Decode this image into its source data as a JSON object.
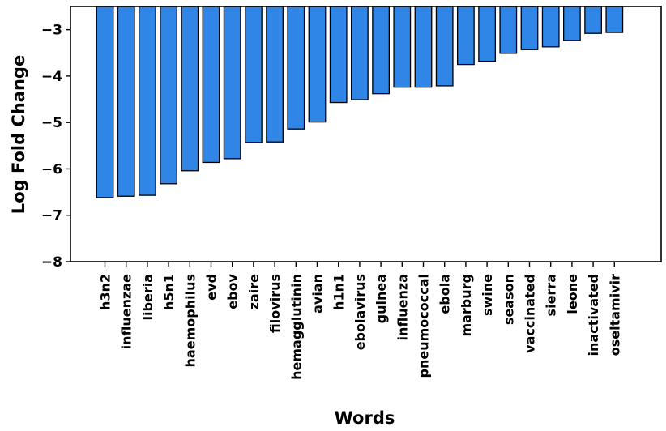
{
  "chart_data": {
    "type": "bar",
    "title": "",
    "xlabel": "Words",
    "ylabel": "Log Fold Change",
    "categories": [
      "h3n2",
      "influenzae",
      "liberia",
      "h5n1",
      "haemophilus",
      "evd",
      "ebov",
      "zaire",
      "filovirus",
      "hemagglutinin",
      "avian",
      "h1n1",
      "ebolavirus",
      "guinea",
      "influenza",
      "pneumococcal",
      "ebola",
      "marburg",
      "swine",
      "season",
      "vaccinated",
      "sierra",
      "leone",
      "inactivated",
      "oseltamivir"
    ],
    "values": [
      -6.62,
      -6.59,
      -6.57,
      -6.32,
      -6.04,
      -5.86,
      -5.78,
      -5.43,
      -5.42,
      -5.14,
      -4.99,
      -4.57,
      -4.51,
      -4.38,
      -4.24,
      -4.24,
      -4.21,
      -3.75,
      -3.68,
      -3.51,
      -3.43,
      -3.37,
      -3.23,
      -3.08,
      -3.06
    ],
    "ylim": [
      -8,
      -2.5
    ],
    "yticks": [
      -8,
      -7,
      -6,
      -5,
      -4,
      -3
    ],
    "ytick_labels": [
      "−8",
      "−7",
      "−6",
      "−5",
      "−4",
      "−3"
    ],
    "bar_color": "#2f86e6",
    "bar_edge_color": "#000000",
    "grid": false,
    "legend": "none"
  }
}
